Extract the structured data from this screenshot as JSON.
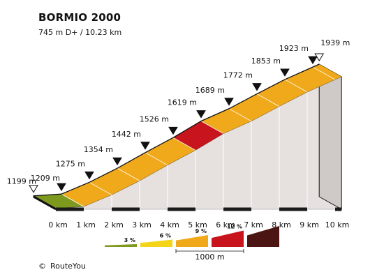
{
  "header": {
    "title": "BORMIO 2000",
    "subtitle": "745 m D+ / 10.23 km"
  },
  "footer": {
    "copyright_symbol": "©",
    "credit": "RouteYou"
  },
  "chart_data": {
    "type": "area",
    "title": "BORMIO 2000",
    "subtitle": "745 m D+ / 10.23 km",
    "x_unit": "km",
    "y_unit": "m",
    "xlim": [
      0,
      10.23
    ],
    "ylim": [
      1194,
      1939
    ],
    "x_ticks": [
      0,
      1,
      2,
      3,
      4,
      5,
      6,
      7,
      8,
      9,
      10
    ],
    "x_tick_labels": [
      "0 km",
      "1 km",
      "2 km",
      "3 km",
      "4 km",
      "5 km",
      "6 km",
      "7 km",
      "8 km",
      "9 km",
      "10 km"
    ],
    "points": [
      {
        "km": 0,
        "elev": 1199,
        "label": "1199 m",
        "marker": "open"
      },
      {
        "km": 1,
        "elev": 1209,
        "label": "1209 m",
        "marker": "filled"
      },
      {
        "km": 2,
        "elev": 1275,
        "label": "1275 m",
        "marker": "filled"
      },
      {
        "km": 3,
        "elev": 1354,
        "label": "1354 m",
        "marker": "filled"
      },
      {
        "km": 4,
        "elev": 1442,
        "label": "1442 m",
        "marker": "filled"
      },
      {
        "km": 5,
        "elev": 1526,
        "label": "1526 m",
        "marker": "filled"
      },
      {
        "km": 6,
        "elev": 1619,
        "label": "1619 m",
        "marker": "filled"
      },
      {
        "km": 7,
        "elev": 1689,
        "label": "1689 m",
        "marker": "filled"
      },
      {
        "km": 8,
        "elev": 1772,
        "label": "1772 m",
        "marker": "filled"
      },
      {
        "km": 9,
        "elev": 1853,
        "label": "1853 m",
        "marker": "filled"
      },
      {
        "km": 10,
        "elev": 1923,
        "label": "1923 m",
        "marker": "filled"
      },
      {
        "km": 10.23,
        "elev": 1939,
        "label": "1939 m",
        "marker": "open"
      }
    ],
    "segments": [
      {
        "from_km": 0,
        "to_km": 1,
        "grade_class": 3
      },
      {
        "from_km": 1,
        "to_km": 5,
        "grade_class": 9
      },
      {
        "from_km": 5,
        "to_km": 6,
        "grade_class": 12
      },
      {
        "from_km": 6,
        "to_km": 10.23,
        "grade_class": 9
      }
    ],
    "legend": {
      "placement": "bottom",
      "scale_label": "1000 m",
      "classes": [
        {
          "label": "3 %",
          "grade": 3,
          "color": "#7e9a1e"
        },
        {
          "label": "6 %",
          "grade": 6,
          "color": "#f3d418"
        },
        {
          "label": "9 %",
          "grade": 9,
          "color": "#f0a91a"
        },
        {
          "label": "12 %",
          "grade": 12,
          "color": "#c8141c"
        },
        {
          "label": "",
          "grade": 15,
          "color": "#4a1512"
        }
      ]
    },
    "colors": {
      "side_wall": "#e6e1df",
      "dark_wall": "#cfcac8",
      "left_face": "#a8a8a8",
      "outline": "#111111",
      "base_band": "#1a1a1a"
    }
  }
}
